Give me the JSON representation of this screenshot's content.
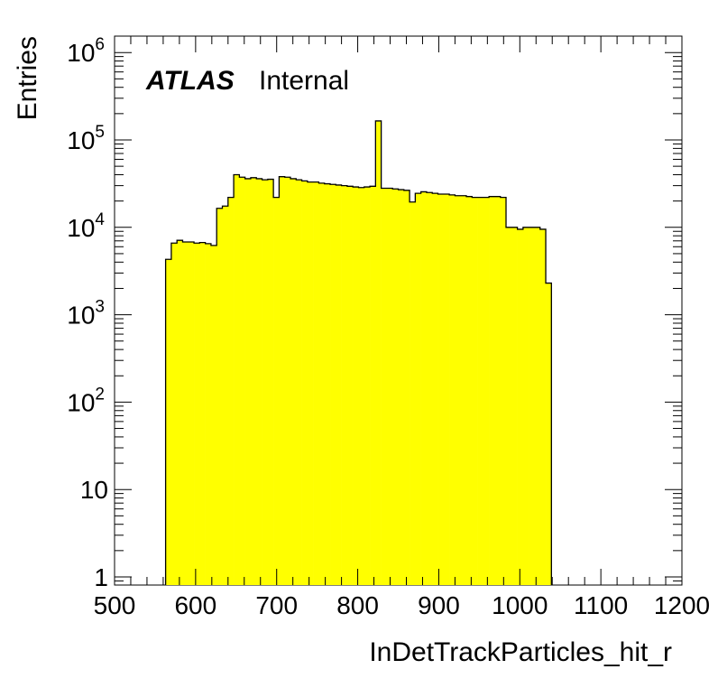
{
  "chart_data": {
    "type": "bar",
    "style": "histogram",
    "title": "",
    "xlabel": "InDetTrackParticles_hit_r",
    "ylabel": "Entries",
    "xlim": [
      500,
      1200
    ],
    "ylim": [
      0.8,
      1500000
    ],
    "yscale": "log",
    "x_ticks": [
      "500",
      "600",
      "700",
      "800",
      "900",
      "1000",
      "1100",
      "1200"
    ],
    "y_ticks": [
      {
        "value": 1,
        "base": "1",
        "exp": ""
      },
      {
        "value": 10,
        "base": "10",
        "exp": ""
      },
      {
        "value": 100,
        "base": "10",
        "exp": "2"
      },
      {
        "value": 1000,
        "base": "10",
        "exp": "3"
      },
      {
        "value": 10000,
        "base": "10",
        "exp": "4"
      },
      {
        "value": 100000,
        "base": "10",
        "exp": "5"
      },
      {
        "value": 1000000,
        "base": "10",
        "exp": "6"
      }
    ],
    "bin_width": 7,
    "bin_start": 563,
    "values": [
      4300,
      6600,
      7100,
      6800,
      6800,
      6600,
      6700,
      6500,
      6200,
      16500,
      17500,
      22000,
      40000,
      37500,
      36000,
      37000,
      36000,
      35000,
      35500,
      22000,
      38000,
      37500,
      36000,
      35000,
      34000,
      33000,
      33000,
      32000,
      31500,
      31000,
      30500,
      30000,
      29500,
      29000,
      28500,
      29000,
      29500,
      165000,
      28000,
      28000,
      27500,
      27000,
      26500,
      19500,
      24500,
      25500,
      25000,
      24500,
      24000,
      24000,
      23500,
      23000,
      23000,
      22500,
      22000,
      22000,
      22000,
      22500,
      22500,
      22000,
      10000,
      10000,
      9500,
      10000,
      10000,
      10000,
      9500,
      2300
    ],
    "fill_color": "#ffff00",
    "line_color": "#000000",
    "annotation": {
      "bold": "ATLAS",
      "normal": "Internal"
    }
  }
}
